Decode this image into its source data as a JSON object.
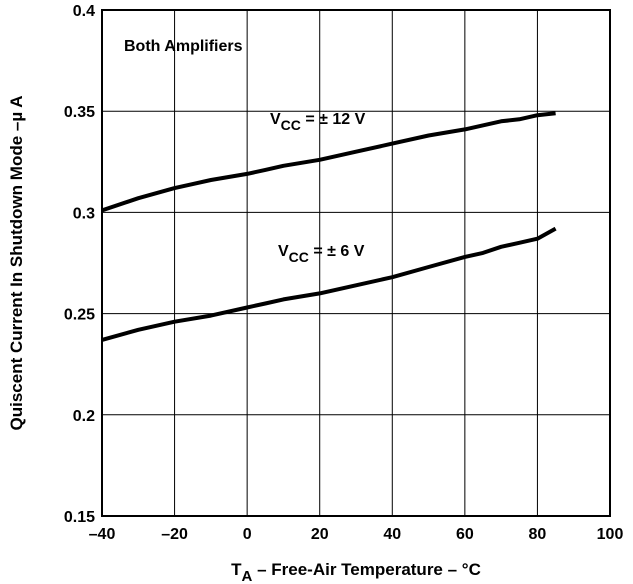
{
  "chart_data": {
    "type": "line",
    "xlabel": {
      "main": "T",
      "sub": "A",
      "rest": " – Free-Air Temperature – °C"
    },
    "ylabel": "Quiscent Current In Shutdown Mode –µ A",
    "xlim": [
      -40,
      100
    ],
    "ylim": [
      0.15,
      0.4
    ],
    "x_ticks": [
      -40,
      -20,
      0,
      20,
      40,
      60,
      80,
      100
    ],
    "x_tick_labels": [
      "–40",
      "–20",
      "0",
      "20",
      "40",
      "60",
      "80",
      "100"
    ],
    "y_ticks": [
      0.15,
      0.2,
      0.25,
      0.3,
      0.35,
      0.4
    ],
    "y_tick_labels": [
      "0.15",
      "0.2",
      "0.25",
      "0.3",
      "0.35",
      "0.4"
    ],
    "grid": true,
    "annotations": [
      {
        "text": "Both Amplifiers"
      }
    ],
    "series": [
      {
        "label": {
          "main": "V",
          "sub": "CC",
          "rest": " = ± 12 V"
        },
        "x": [
          -40,
          -30,
          -20,
          -15,
          -10,
          0,
          5,
          10,
          20,
          30,
          40,
          50,
          60,
          70,
          75,
          80,
          85
        ],
        "y": [
          0.301,
          0.307,
          0.312,
          0.314,
          0.316,
          0.319,
          0.321,
          0.323,
          0.326,
          0.33,
          0.334,
          0.338,
          0.341,
          0.345,
          0.346,
          0.348,
          0.349
        ]
      },
      {
        "label": {
          "main": "V",
          "sub": "CC",
          "rest": " = ± 6 V"
        },
        "x": [
          -40,
          -30,
          -20,
          -10,
          0,
          5,
          10,
          20,
          30,
          40,
          50,
          60,
          65,
          70,
          75,
          80,
          85
        ],
        "y": [
          0.237,
          0.242,
          0.246,
          0.249,
          0.253,
          0.255,
          0.257,
          0.26,
          0.264,
          0.268,
          0.273,
          0.278,
          0.28,
          0.283,
          0.285,
          0.287,
          0.292
        ]
      }
    ]
  }
}
